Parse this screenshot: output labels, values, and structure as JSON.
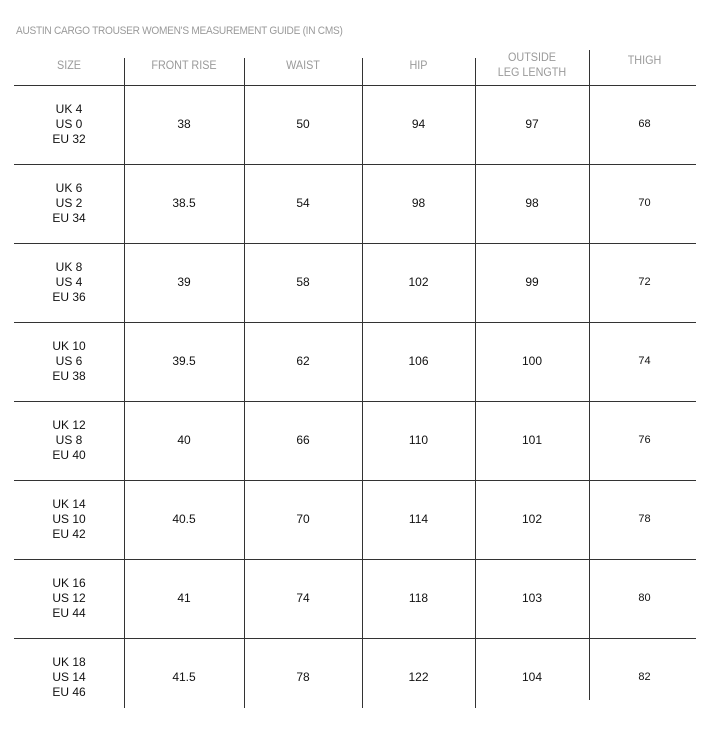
{
  "title": "AUSTIN CARGO TROUSER WOMEN'S MEASUREMENT GUIDE (IN CMS)",
  "headers": [
    "SIZE",
    "FRONT RISE",
    "WAIST",
    "HIP",
    "OUTSIDE\nLEG LENGTH",
    "THIGH"
  ],
  "rows": [
    {
      "size": [
        "UK 4",
        "US 0",
        "EU 32"
      ],
      "front_rise": "38",
      "waist": "50",
      "hip": "94",
      "outside_leg_length": "97",
      "thigh": "68"
    },
    {
      "size": [
        "UK 6",
        "US 2",
        "EU 34"
      ],
      "front_rise": "38.5",
      "waist": "54",
      "hip": "98",
      "outside_leg_length": "98",
      "thigh": "70"
    },
    {
      "size": [
        "UK 8",
        "US 4",
        "EU 36"
      ],
      "front_rise": "39",
      "waist": "58",
      "hip": "102",
      "outside_leg_length": "99",
      "thigh": "72"
    },
    {
      "size": [
        "UK 10",
        "US 6",
        "EU 38"
      ],
      "front_rise": "39.5",
      "waist": "62",
      "hip": "106",
      "outside_leg_length": "100",
      "thigh": "74"
    },
    {
      "size": [
        "UK 12",
        "US 8",
        "EU 40"
      ],
      "front_rise": "40",
      "waist": "66",
      "hip": "110",
      "outside_leg_length": "101",
      "thigh": "76"
    },
    {
      "size": [
        "UK 14",
        "US 10",
        "EU 42"
      ],
      "front_rise": "40.5",
      "waist": "70",
      "hip": "114",
      "outside_leg_length": "102",
      "thigh": "78"
    },
    {
      "size": [
        "UK 16",
        "US 12",
        "EU 44"
      ],
      "front_rise": "41",
      "waist": "74",
      "hip": "118",
      "outside_leg_length": "103",
      "thigh": "80"
    },
    {
      "size": [
        "UK 18",
        "US 14",
        "EU 46"
      ],
      "front_rise": "41.5",
      "waist": "78",
      "hip": "122",
      "outside_leg_length": "104",
      "thigh": "82"
    }
  ]
}
